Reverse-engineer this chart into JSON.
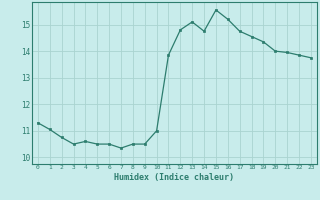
{
  "x": [
    0,
    1,
    2,
    3,
    4,
    5,
    6,
    7,
    8,
    9,
    10,
    11,
    12,
    13,
    14,
    15,
    16,
    17,
    18,
    19,
    20,
    21,
    22,
    23
  ],
  "y": [
    11.3,
    11.05,
    10.75,
    10.5,
    10.6,
    10.5,
    10.5,
    10.35,
    10.5,
    10.5,
    11.0,
    13.85,
    14.8,
    15.1,
    14.75,
    15.55,
    15.2,
    14.75,
    14.55,
    14.35,
    14.0,
    13.95,
    13.85,
    13.75
  ],
  "line_color": "#2d7d6e",
  "bg_color": "#c8eceb",
  "grid_color": "#aad4d0",
  "xlabel": "Humidex (Indice chaleur)",
  "xlim": [
    -0.5,
    23.5
  ],
  "ylim": [
    9.75,
    15.85
  ],
  "yticks": [
    10,
    11,
    12,
    13,
    14,
    15
  ],
  "xticks": [
    0,
    1,
    2,
    3,
    4,
    5,
    6,
    7,
    8,
    9,
    10,
    11,
    12,
    13,
    14,
    15,
    16,
    17,
    18,
    19,
    20,
    21,
    22,
    23
  ]
}
